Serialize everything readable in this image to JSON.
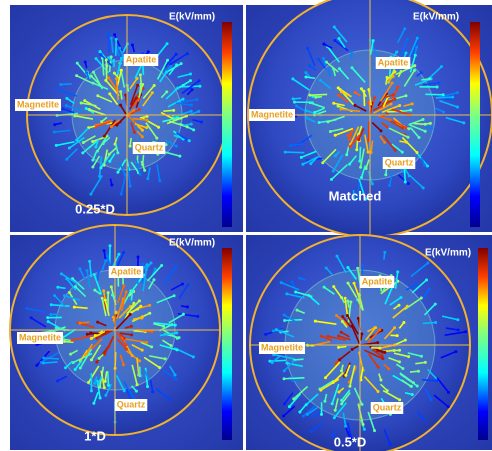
{
  "panels": [
    {
      "colorbar_label": "E(kV/mm)",
      "labels": [
        "Apatite",
        "Magnetite",
        "Quartz"
      ],
      "caption": "0.25*D"
    },
    {
      "colorbar_label": "E(kV/mm)",
      "labels": [
        "Apatite",
        "Magnetite",
        "Quartz"
      ],
      "caption": "Matched"
    },
    {
      "colorbar_label": "E(kV/mm)",
      "labels": [
        "Apatite",
        "Magnetite",
        "Quartz"
      ],
      "caption": "1*D"
    },
    {
      "colorbar_label": "E(kV/mm)",
      "labels": [
        "Apatite",
        "Magnetite",
        "Quartz"
      ],
      "caption": "0.5*D"
    }
  ]
}
